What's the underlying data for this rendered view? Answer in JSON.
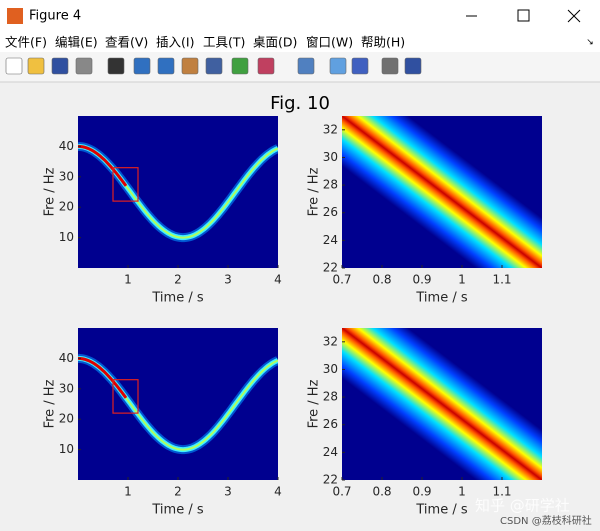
{
  "window": {
    "title": "Figure 4",
    "menu": [
      "文件(F)",
      "编辑(E)",
      "查看(V)",
      "插入(I)",
      "工具(T)",
      "桌面(D)",
      "窗口(W)",
      "帮助(H)"
    ]
  },
  "figure_title": "Fig. 10",
  "chart_data": [
    {
      "type": "image",
      "xlabel": "Time / s",
      "ylabel": "Fre / Hz",
      "xlim": [
        0,
        4
      ],
      "ylim": [
        0,
        50
      ],
      "xticks": [
        1,
        2,
        3,
        4
      ],
      "yticks": [
        10,
        20,
        30,
        40
      ]
    },
    {
      "type": "image",
      "xlabel": "Time / s",
      "ylabel": "Fre / Hz",
      "xlim": [
        0.7,
        1.2
      ],
      "ylim": [
        22,
        33
      ],
      "xticks": [
        0.7,
        0.8,
        0.9,
        {
          "value": 1,
          "label": "1"
        },
        1.1
      ],
      "yticks": [
        22,
        24,
        26,
        28,
        30,
        32
      ]
    },
    {
      "type": "image",
      "xlabel": "Time / s",
      "ylabel": "Fre / Hz",
      "xlim": [
        0,
        4
      ],
      "ylim": [
        0,
        50
      ],
      "xticks": [
        1,
        2,
        3,
        4
      ],
      "yticks": [
        10,
        20,
        30,
        40
      ]
    },
    {
      "type": "image",
      "xlabel": "Time / s",
      "ylabel": "Fre / Hz",
      "xlim": [
        0.7,
        1.2
      ],
      "ylim": [
        22,
        33
      ],
      "xticks": [
        0.7,
        0.8,
        0.9,
        {
          "value": 1,
          "label": "1"
        },
        1.1
      ],
      "yticks": [
        22,
        24,
        26,
        28,
        30,
        32
      ]
    }
  ],
  "watermarks": [
    "知乎 @研学社",
    "CSDN @荔枝科研社"
  ]
}
